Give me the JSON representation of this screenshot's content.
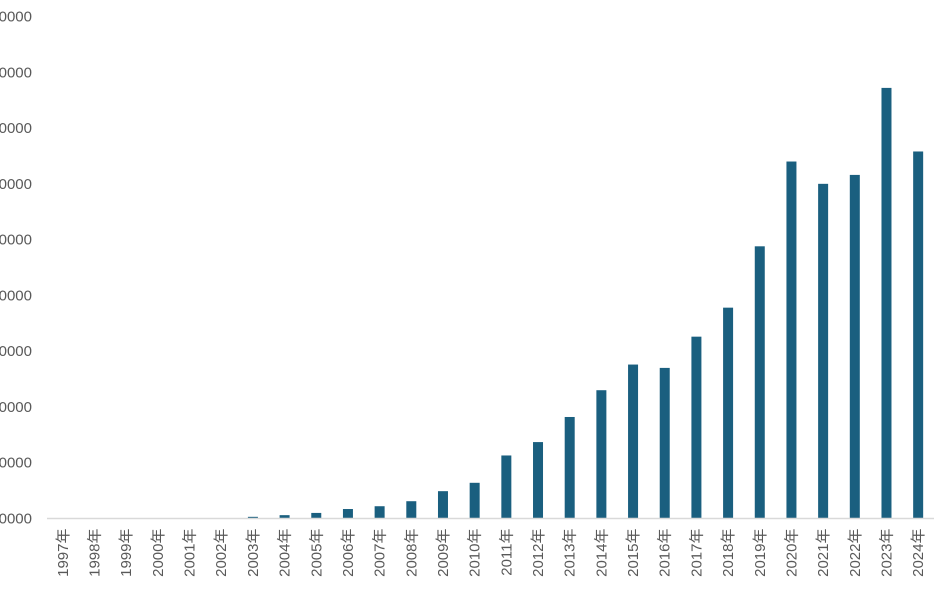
{
  "chart_data": {
    "type": "bar",
    "title": "",
    "xlabel": "",
    "ylabel": "",
    "ylim": [
      0,
      45000
    ],
    "y_ticks": [
      "0000",
      "0000",
      "0000",
      "0000",
      "0000",
      "0000",
      "0000",
      "0000",
      "0000",
      "0000"
    ],
    "categories": [
      "1997年",
      "1998年",
      "1999年",
      "2000年",
      "2001年",
      "2002年",
      "2003年",
      "2004年",
      "2005年",
      "2006年",
      "2007年",
      "2008年",
      "2009年",
      "2010年",
      "2011年",
      "2012年",
      "2013年",
      "2014年",
      "2015年",
      "2016年",
      "2017年",
      "2018年",
      "2019年",
      "2020年",
      "2021年",
      "2022年",
      "2023年",
      "2024年"
    ],
    "values": [
      0,
      0,
      0,
      0,
      0,
      0,
      150,
      300,
      500,
      850,
      1100,
      1550,
      2450,
      3200,
      5650,
      6850,
      9100,
      11500,
      13800,
      13500,
      16300,
      18900,
      24400,
      32000,
      30000,
      30800,
      38600,
      32900
    ],
    "grid": false,
    "legend": "none",
    "colors": {
      "bar": "#1a5f7f",
      "axis": "#d9d9d9",
      "text": "#595959"
    }
  }
}
